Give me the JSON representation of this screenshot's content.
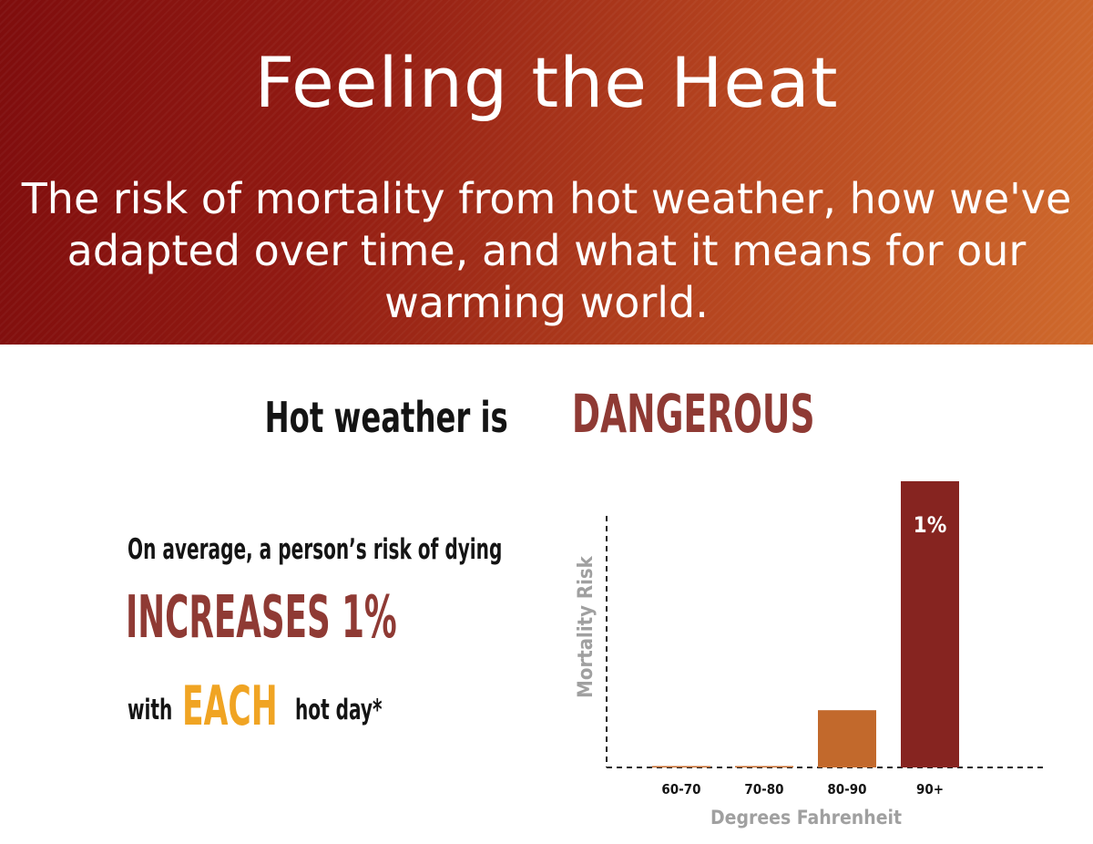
{
  "banner": {
    "title": "Feeling the Heat",
    "subtitle": "The risk of mortality from hot weather, how we've adapted over time, and what it means for our warming world."
  },
  "headline": {
    "prefix": "Hot weather is",
    "emphasis": "DANGEROUS"
  },
  "fact": {
    "line1": "On average, a person’s risk of dying",
    "line2": "INCREASES 1%",
    "with": "with",
    "each": "EACH",
    "tail": "hot day*"
  },
  "colors": {
    "banner_dark": "#7f0d0d",
    "banner_light": "#cf6a2c",
    "accent_red": "#8f3a34",
    "accent_orange": "#f0a423",
    "bar_orange": "#c2692c",
    "bar_red": "#862420",
    "axis_label_gray": "#a0a0a0"
  },
  "chart_data": {
    "type": "bar",
    "categories": [
      "60-70",
      "70-80",
      "80-90",
      "90+"
    ],
    "values": [
      0.004,
      0.004,
      0.2,
      1.0
    ],
    "bar_colors": [
      "#c2692c",
      "#c2692c",
      "#c2692c",
      "#862420"
    ],
    "data_labels": [
      "",
      "",
      "",
      "1%"
    ],
    "title": "",
    "xlabel": "Degrees Fahrenheit",
    "ylabel": "Mortality Risk",
    "ylim": [
      0,
      1.0
    ],
    "grid": false,
    "axis_style": "dashed",
    "legend": "none"
  }
}
